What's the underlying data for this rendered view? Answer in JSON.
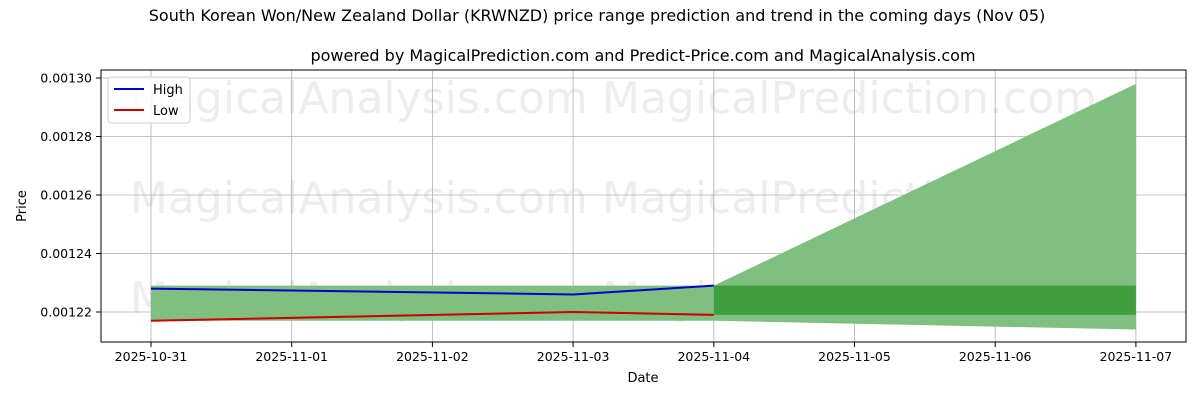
{
  "title": "South Korean Won/New Zealand Dollar (KRWNZD) price range prediction and trend in the coming days (Nov 05)",
  "subtitle": "powered by MagicalPrediction.com and Predict-Price.com and MagicalAnalysis.com",
  "watermarks": [
    "MagicalAnalysis.com",
    "MagicalPrediction.com"
  ],
  "colors": {
    "high": "#0000cc",
    "low": "#cc0000",
    "band_light": "#7fbf7f",
    "band_dark": "#3f9f3f",
    "grid": "#b0b0b0"
  },
  "chart_data": {
    "type": "line",
    "title": "South Korean Won/New Zealand Dollar (KRWNZD) price range prediction and trend in the coming days (Nov 05)",
    "subtitle": "powered by MagicalPrediction.com and Predict-Price.com and MagicalAnalysis.com",
    "xlabel": "Date",
    "ylabel": "Price",
    "x_ticks": [
      "2025-10-31",
      "2025-11-01",
      "2025-11-02",
      "2025-11-03",
      "2025-11-04",
      "2025-11-05",
      "2025-11-06",
      "2025-11-07"
    ],
    "y_ticks": [
      "0.00122",
      "0.00124",
      "0.00126",
      "0.00128",
      "0.00130"
    ],
    "ylim": [
      0.00121,
      0.001301
    ],
    "grid": true,
    "legend_position": "upper left",
    "series": [
      {
        "name": "High",
        "color": "#0000cc",
        "x": [
          "2025-10-31",
          "2025-11-03",
          "2025-11-04"
        ],
        "values": [
          0.001228,
          0.001226,
          0.001229
        ]
      },
      {
        "name": "Low",
        "color": "#cc0000",
        "x": [
          "2025-10-31",
          "2025-11-03",
          "2025-11-04"
        ],
        "values": [
          0.001217,
          0.00122,
          0.001219
        ]
      }
    ],
    "historical_band": {
      "x": [
        "2025-10-31",
        "2025-11-04"
      ],
      "upper": 0.001229,
      "lower": 0.001217
    },
    "forecast_range": {
      "x": [
        "2025-11-04",
        "2025-11-07"
      ],
      "upper": [
        0.001229,
        0.001298
      ],
      "lower": [
        0.001217,
        0.001214
      ]
    },
    "forecast_core_band": {
      "x": [
        "2025-11-04",
        "2025-11-07"
      ],
      "upper": 0.001229,
      "lower": 0.001219
    }
  }
}
